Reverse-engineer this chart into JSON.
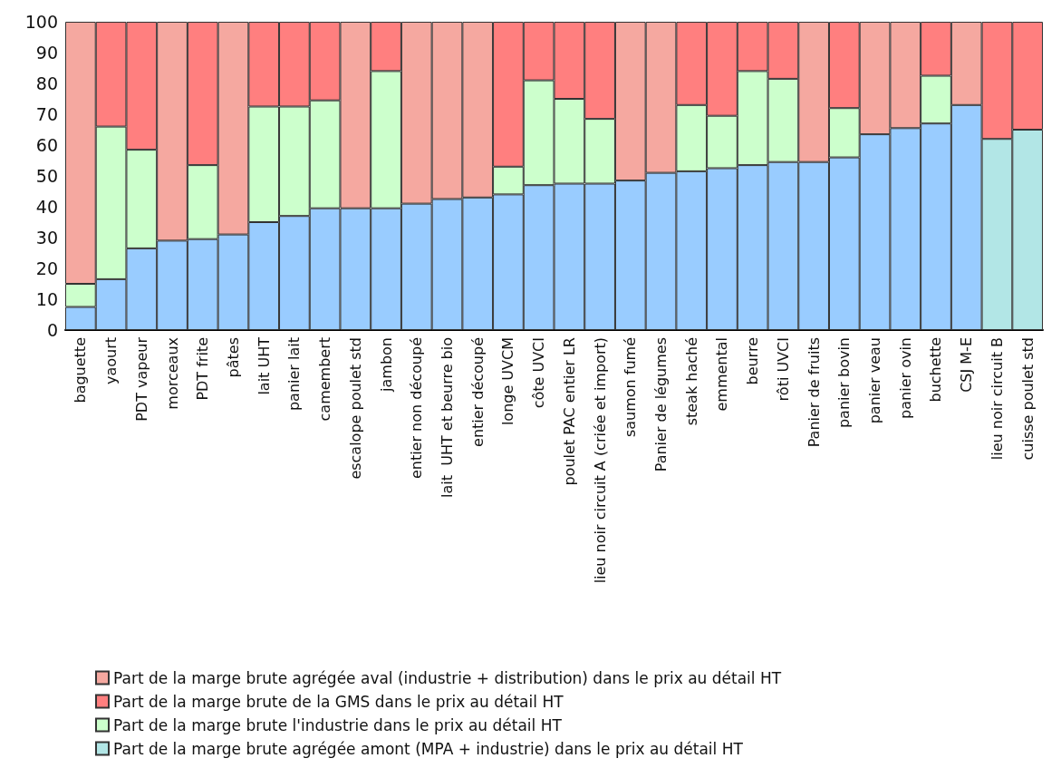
{
  "chart_data": {
    "type": "bar",
    "stacked": true,
    "categories": [
      "baguette",
      "yaourt",
      "PDT vapeur",
      "morceaux",
      "PDT frite",
      "pâtes",
      "lait UHT",
      "panier lait",
      "camembert",
      "escalope poulet std",
      "jambon",
      "entier non découpé",
      "lait  UHT et beurre bio",
      "entier découpé",
      "longe UVCM",
      "côte UVCI",
      "poulet PAC entier LR",
      "lieu noir circuit A (criée et import)",
      "saumon fumé",
      "Panier de légumes",
      "steak haché",
      "emmental",
      "beurre",
      "rôti UVCI",
      "Panier de fruits",
      "panier bovin",
      "panier veau",
      "panier ovin",
      "buchette",
      "CSJ M-E",
      "lieu noir circuit B",
      "cuisse poulet std"
    ],
    "series": [
      {
        "color": "#99ccff",
        "values": [
          7.5,
          16.5,
          26.5,
          29,
          29.5,
          31,
          35,
          37,
          39.5,
          39.5,
          39.5,
          41,
          42.5,
          43,
          44,
          47,
          47.5,
          47.5,
          48.5,
          51,
          51.5,
          52.5,
          53.5,
          54.5,
          54.5,
          56,
          63.5,
          65.5,
          67,
          73,
          null,
          null
        ]
      },
      {
        "name": "Part de la marge brute agrégée amont (MPA + industrie) dans le prix au détail HT",
        "color": "#b2e6e6",
        "values": [
          null,
          null,
          null,
          null,
          null,
          null,
          null,
          null,
          null,
          null,
          null,
          null,
          null,
          null,
          null,
          null,
          null,
          null,
          null,
          null,
          null,
          null,
          null,
          null,
          null,
          null,
          null,
          null,
          null,
          null,
          62,
          65
        ]
      },
      {
        "name": "Part de la marge brute l'industrie dans le prix au détail HT",
        "color": "#ccffcc",
        "values": [
          7.5,
          49.5,
          32,
          null,
          24,
          null,
          37.5,
          35.5,
          35,
          null,
          44.5,
          null,
          null,
          null,
          9,
          34,
          27.5,
          21,
          null,
          null,
          21.5,
          17,
          30.5,
          27,
          null,
          16,
          null,
          null,
          15.5,
          null,
          null,
          null
        ]
      },
      {
        "name": "Part de la marge brute de la GMS dans le prix au détail HT",
        "color": "#ff7f7f",
        "values": [
          null,
          34,
          41.5,
          null,
          46.5,
          null,
          27.5,
          27.5,
          25.5,
          null,
          16,
          null,
          null,
          null,
          47,
          19,
          25,
          31.5,
          null,
          null,
          27,
          30.5,
          16,
          18.5,
          null,
          28,
          null,
          null,
          17.5,
          null,
          38,
          35
        ]
      },
      {
        "name": "Part de la marge brute agrégée aval (industrie + distribution) dans le prix au détail HT",
        "color": "#f5a8a0",
        "values": [
          85,
          null,
          null,
          71,
          null,
          69,
          null,
          null,
          null,
          60.5,
          null,
          59,
          57.5,
          57,
          null,
          null,
          null,
          null,
          51.5,
          49,
          null,
          null,
          null,
          null,
          45.5,
          null,
          36.5,
          34.5,
          null,
          27,
          null,
          null
        ]
      }
    ],
    "ylim": [
      0,
      100
    ],
    "yticks": [
      0,
      10,
      20,
      30,
      40,
      50,
      60,
      70,
      80,
      90,
      100
    ],
    "grid": false,
    "legend": "bottom"
  }
}
